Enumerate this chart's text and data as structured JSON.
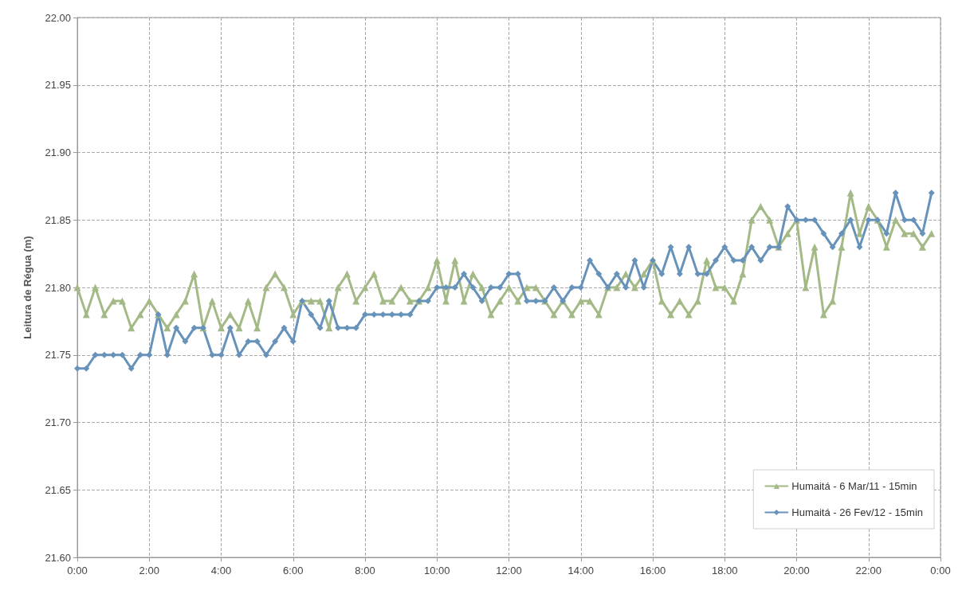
{
  "chart_data": {
    "type": "line",
    "ylabel": "Leitura de Régua (m)",
    "x": [
      0,
      0.25,
      0.5,
      0.75,
      1,
      1.25,
      1.5,
      1.75,
      2,
      2.25,
      2.5,
      2.75,
      3,
      3.25,
      3.5,
      3.75,
      4,
      4.25,
      4.5,
      4.75,
      5,
      5.25,
      5.5,
      5.75,
      6,
      6.25,
      6.5,
      6.75,
      7,
      7.25,
      7.5,
      7.75,
      8,
      8.25,
      8.5,
      8.75,
      9,
      9.25,
      9.5,
      9.75,
      10,
      10.25,
      10.5,
      10.75,
      11,
      11.25,
      11.5,
      11.75,
      12,
      12.25,
      12.5,
      12.75,
      13,
      13.25,
      13.5,
      13.75,
      14,
      14.25,
      14.5,
      14.75,
      15,
      15.25,
      15.5,
      15.75,
      16,
      16.25,
      16.5,
      16.75,
      17,
      17.25,
      17.5,
      17.75,
      18,
      18.25,
      18.5,
      18.75,
      19,
      19.25,
      19.5,
      19.75,
      20,
      20.25,
      20.5,
      20.75,
      21,
      21.25,
      21.5,
      21.75,
      22,
      22.25,
      22.5,
      22.75,
      23,
      23.25,
      23.5,
      23.75
    ],
    "series": [
      {
        "name": "Humaitá - 6 Mar/11 - 15min",
        "color": "#a3b986",
        "marker": "triangle",
        "values": [
          21.8,
          21.78,
          21.8,
          21.78,
          21.79,
          21.79,
          21.77,
          21.78,
          21.79,
          21.78,
          21.77,
          21.78,
          21.79,
          21.81,
          21.77,
          21.79,
          21.77,
          21.78,
          21.77,
          21.79,
          21.77,
          21.8,
          21.81,
          21.8,
          21.78,
          21.79,
          21.79,
          21.79,
          21.77,
          21.8,
          21.81,
          21.79,
          21.8,
          21.81,
          21.79,
          21.79,
          21.8,
          21.79,
          21.79,
          21.8,
          21.82,
          21.79,
          21.82,
          21.79,
          21.81,
          21.8,
          21.78,
          21.79,
          21.8,
          21.79,
          21.8,
          21.8,
          21.79,
          21.78,
          21.79,
          21.78,
          21.79,
          21.79,
          21.78,
          21.8,
          21.8,
          21.81,
          21.8,
          21.81,
          21.82,
          21.79,
          21.78,
          21.79,
          21.78,
          21.79,
          21.82,
          21.8,
          21.8,
          21.79,
          21.81,
          21.85,
          21.86,
          21.85,
          21.83,
          21.84,
          21.85,
          21.8,
          21.83,
          21.78,
          21.79,
          21.83,
          21.87,
          21.84,
          21.86,
          21.85,
          21.83,
          21.85,
          21.84,
          21.84,
          21.83,
          21.84
        ]
      },
      {
        "name": "Humaitá - 26 Fev/12 - 15min",
        "color": "#6792ba",
        "marker": "diamond",
        "values": [
          21.74,
          21.74,
          21.75,
          21.75,
          21.75,
          21.75,
          21.74,
          21.75,
          21.75,
          21.78,
          21.75,
          21.77,
          21.76,
          21.77,
          21.77,
          21.75,
          21.75,
          21.77,
          21.75,
          21.76,
          21.76,
          21.75,
          21.76,
          21.77,
          21.76,
          21.79,
          21.78,
          21.77,
          21.79,
          21.77,
          21.77,
          21.77,
          21.78,
          21.78,
          21.78,
          21.78,
          21.78,
          21.78,
          21.79,
          21.79,
          21.8,
          21.8,
          21.8,
          21.81,
          21.8,
          21.79,
          21.8,
          21.8,
          21.81,
          21.81,
          21.79,
          21.79,
          21.79,
          21.8,
          21.79,
          21.8,
          21.8,
          21.82,
          21.81,
          21.8,
          21.81,
          21.8,
          21.82,
          21.8,
          21.82,
          21.81,
          21.83,
          21.81,
          21.83,
          21.81,
          21.81,
          21.82,
          21.83,
          21.82,
          21.82,
          21.83,
          21.82,
          21.83,
          21.83,
          21.86,
          21.85,
          21.85,
          21.85,
          21.84,
          21.83,
          21.84,
          21.85,
          21.83,
          21.85,
          21.85,
          21.84,
          21.87,
          21.85,
          21.85,
          21.84,
          21.87
        ]
      }
    ],
    "xlim": [
      0,
      24
    ],
    "xticks": [
      {
        "value": 0,
        "label": "0:00"
      },
      {
        "value": 2,
        "label": "2:00"
      },
      {
        "value": 4,
        "label": "4:00"
      },
      {
        "value": 6,
        "label": "6:00"
      },
      {
        "value": 8,
        "label": "8:00"
      },
      {
        "value": 10,
        "label": "10:00"
      },
      {
        "value": 12,
        "label": "12:00"
      },
      {
        "value": 14,
        "label": "14:00"
      },
      {
        "value": 16,
        "label": "16:00"
      },
      {
        "value": 18,
        "label": "18:00"
      },
      {
        "value": 20,
        "label": "20:00"
      },
      {
        "value": 22,
        "label": "22:00"
      },
      {
        "value": 24,
        "label": "0:00"
      }
    ],
    "ylim": [
      21.6,
      22.0
    ],
    "yticks": [
      {
        "value": 21.6,
        "label": "21.60"
      },
      {
        "value": 21.65,
        "label": "21.65"
      },
      {
        "value": 21.7,
        "label": "21.70"
      },
      {
        "value": 21.75,
        "label": "21.75"
      },
      {
        "value": 21.8,
        "label": "21.80"
      },
      {
        "value": 21.85,
        "label": "21.85"
      },
      {
        "value": 21.9,
        "label": "21.90"
      },
      {
        "value": 21.95,
        "label": "21.95"
      },
      {
        "value": 22.0,
        "label": "22.00"
      }
    ],
    "grid": true,
    "legend": "bottom right",
    "line_style": "solid"
  }
}
